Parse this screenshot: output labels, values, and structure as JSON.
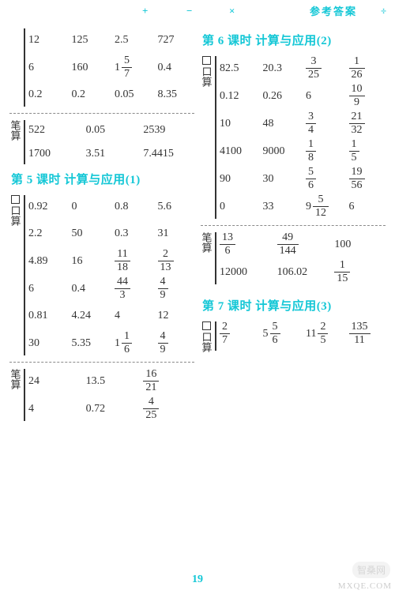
{
  "header": {
    "ref": "参考答案",
    "symbols": [
      "+",
      "−",
      "×",
      "÷"
    ]
  },
  "page_number": "19",
  "watermark": {
    "badge": "智桑网",
    "domain": "MXQE.COM"
  },
  "colors": {
    "accent": "#14c7d6",
    "text": "#333333",
    "bg": "#ffffff",
    "dash": "#8a8a8a"
  },
  "left": {
    "top_block": {
      "label": "笔算",
      "kousuan_rows": [
        [
          "12",
          "125",
          "2.5",
          "727"
        ],
        [
          "6",
          "160",
          {
            "mixed": [
              "1",
              "5",
              "7"
            ]
          },
          "0.4"
        ],
        [
          "0.2",
          "0.2",
          "0.05",
          "8.35"
        ]
      ],
      "bisuan_rows": [
        [
          "522",
          "0.05",
          "2539"
        ],
        [
          "1700",
          "3.51",
          "7.4415"
        ]
      ]
    },
    "sect5": {
      "title": "第 5 课时  计算与应用(1)",
      "kousuan_label": "口算",
      "kousuan_rows": [
        [
          "0.92",
          "0",
          "0.8",
          "5.6"
        ],
        [
          "2.2",
          "50",
          "0.3",
          "31"
        ],
        [
          "4.89",
          "16",
          {
            "frac": [
              "11",
              "18"
            ]
          },
          {
            "frac": [
              "2",
              "13"
            ]
          }
        ],
        [
          "6",
          "0.4",
          {
            "frac": [
              "44",
              "3"
            ]
          },
          {
            "frac": [
              "4",
              "9"
            ]
          }
        ],
        [
          "0.81",
          "4.24",
          "4",
          "12"
        ],
        [
          "30",
          "5.35",
          {
            "mixed": [
              "1",
              "1",
              "6"
            ]
          },
          {
            "frac": [
              "4",
              "9"
            ]
          }
        ]
      ],
      "bisuan_label": "笔算",
      "bisuan_rows": [
        [
          "24",
          "13.5",
          {
            "frac": [
              "16",
              "21"
            ]
          }
        ],
        [
          "4",
          "0.72",
          {
            "frac": [
              "4",
              "25"
            ]
          }
        ]
      ]
    }
  },
  "right": {
    "sect6": {
      "title": "第 6 课时  计算与应用(2)",
      "kousuan_label": "口算",
      "kousuan_rows": [
        [
          "82.5",
          "20.3",
          {
            "frac": [
              "3",
              "25"
            ]
          },
          {
            "frac": [
              "1",
              "26"
            ]
          }
        ],
        [
          "0.12",
          "0.26",
          "6",
          {
            "frac": [
              "10",
              "9"
            ]
          }
        ],
        [
          "10",
          "48",
          {
            "frac": [
              "3",
              "4"
            ]
          },
          {
            "frac": [
              "21",
              "32"
            ]
          }
        ],
        [
          "4100",
          "9000",
          {
            "frac": [
              "1",
              "8"
            ]
          },
          {
            "frac": [
              "1",
              "5"
            ]
          }
        ],
        [
          "90",
          "30",
          {
            "frac": [
              "5",
              "6"
            ]
          },
          {
            "frac": [
              "19",
              "56"
            ]
          }
        ],
        [
          "0",
          "33",
          {
            "mixed": [
              "9",
              "5",
              "12"
            ]
          },
          "6"
        ]
      ],
      "bisuan_label": "笔算",
      "bisuan_rows": [
        [
          {
            "frac": [
              "13",
              "6"
            ]
          },
          {
            "frac": [
              "49",
              "144"
            ]
          },
          "100"
        ],
        [
          "12000",
          "106.02",
          {
            "frac": [
              "1",
              "15"
            ]
          }
        ]
      ]
    },
    "sect7": {
      "title": "第 7 课时  计算与应用(3)",
      "kousuan_label": "口算",
      "kousuan_rows": [
        [
          {
            "frac": [
              "2",
              "7"
            ]
          },
          {
            "mixed": [
              "5",
              "5",
              "6"
            ]
          },
          {
            "mixed": [
              "11",
              "2",
              "5"
            ]
          },
          {
            "frac": [
              "135",
              "11"
            ]
          }
        ]
      ]
    }
  }
}
